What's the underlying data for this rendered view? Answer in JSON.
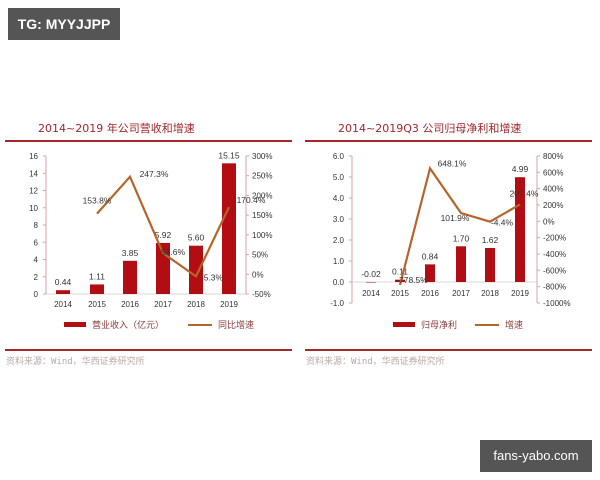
{
  "watermarks": {
    "top_left": "TG: MYYJJPP",
    "bottom_right": "fans-yabo.com"
  },
  "colors": {
    "bar": "#b20d12",
    "line": "#b5652b",
    "title": "#a0262a",
    "rule": "#a3272b",
    "axis": "#d9a3a3"
  },
  "chart_data": [
    {
      "type": "bar+line",
      "title": "2014~2019 年公司营收和增速",
      "categories": [
        "2014",
        "2015",
        "2016",
        "2017",
        "2018",
        "2019"
      ],
      "series": [
        {
          "name": "营业收入（亿元）",
          "type": "bar",
          "axis": "left",
          "values": [
            0.44,
            1.11,
            3.85,
            5.92,
            5.6,
            15.15
          ],
          "labels": [
            "0.44",
            "1.11",
            "3.85",
            "5.92",
            "5.60",
            "15.15"
          ]
        },
        {
          "name": "同比增速",
          "type": "line",
          "axis": "right",
          "values": [
            null,
            153.8,
            247.3,
            53.6,
            -5.3,
            170.4
          ],
          "labels": [
            "",
            "153.8%",
            "247.3%",
            "53.6%",
            "-5.3%",
            "170.4%"
          ]
        }
      ],
      "left_axis": {
        "ticks": [
          "0",
          "2",
          "4",
          "6",
          "8",
          "10",
          "12",
          "14",
          "16"
        ],
        "range": [
          0,
          16
        ]
      },
      "right_axis": {
        "ticks": [
          "-50%",
          "0%",
          "50%",
          "100%",
          "150%",
          "200%",
          "250%",
          "300%"
        ],
        "range": [
          -50,
          300
        ]
      },
      "legend": [
        "营业收入（亿元）",
        "同比增速"
      ],
      "legend_position": "bottom",
      "grid": false,
      "source": "资料来源：Wind，华西证券研究所"
    },
    {
      "type": "bar+line",
      "title": "2014~2019Q3 公司归母净利和增速",
      "categories": [
        "2014",
        "2015",
        "2016",
        "2017",
        "2018",
        "2019"
      ],
      "series": [
        {
          "name": "归母净利",
          "type": "bar",
          "axis": "left",
          "values": [
            -0.02,
            0.11,
            0.84,
            1.7,
            1.62,
            4.99
          ],
          "labels": [
            "-0.02",
            "0.11",
            "0.84",
            "1.70",
            "1.62",
            "4.99"
          ]
        },
        {
          "name": "增速",
          "type": "line",
          "axis": "right",
          "values": [
            null,
            -778.5,
            648.1,
            101.9,
            -4.4,
            207.4
          ],
          "labels": [
            "",
            "-778.5%",
            "648.1%",
            "101.9%",
            "-4.4%",
            "207.4%"
          ]
        }
      ],
      "left_axis": {
        "ticks": [
          "-1.0",
          "0.0",
          "1.0",
          "2.0",
          "3.0",
          "4.0",
          "5.0",
          "6.0"
        ],
        "range": [
          -1,
          6
        ]
      },
      "right_axis": {
        "ticks": [
          "-1000%",
          "-800%",
          "-600%",
          "-400%",
          "-200%",
          "0%",
          "200%",
          "400%",
          "600%",
          "800%"
        ],
        "range": [
          -1000,
          800
        ]
      },
      "legend": [
        "归母净利",
        "增速"
      ],
      "legend_position": "bottom",
      "grid": false,
      "source": "资料来源：Wind，华西证券研究所"
    }
  ]
}
